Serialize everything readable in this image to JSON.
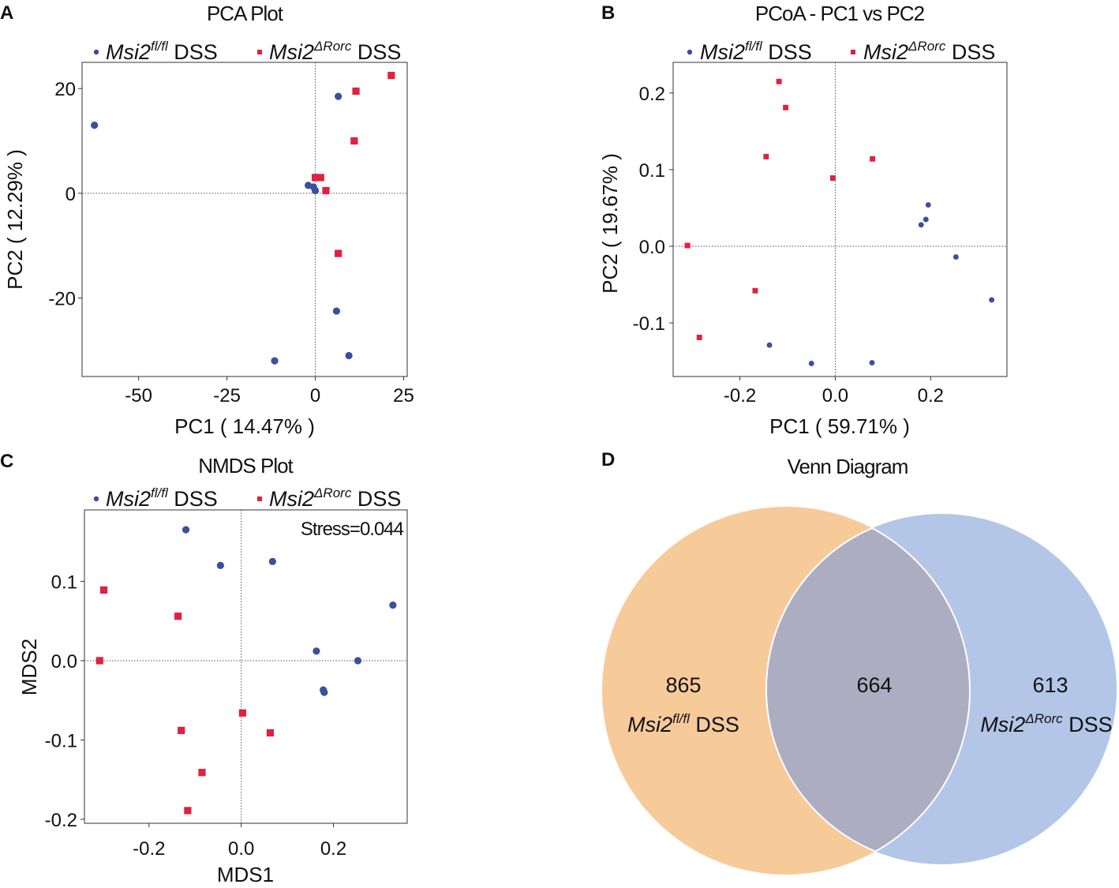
{
  "chart_data": [
    {
      "id": "A",
      "type": "scatter",
      "panel_label": "A",
      "title": "PCA Plot",
      "xlabel": "PC1 ( 14.47% )",
      "ylabel": "PC2 ( 12.29% )",
      "xlim": [
        -66,
        26
      ],
      "ylim": [
        -35,
        25
      ],
      "xticks": [
        -50,
        -25,
        0,
        25
      ],
      "yticks": [
        20,
        0,
        -20
      ],
      "xtick_labels": [
        "-50",
        "-25",
        "0",
        "25"
      ],
      "ytick_labels": [
        "20",
        "0",
        "-20"
      ],
      "ref_lines": {
        "x": 0,
        "y": 0
      },
      "legend_position": "top",
      "series": [
        {
          "name": "Msi2fl/fl DSS",
          "marker": "circle",
          "color": "#3a4fa0",
          "points": [
            [
              -62.5,
              13
            ],
            [
              6.5,
              18.5
            ],
            [
              -2,
              1.5
            ],
            [
              -0.5,
              1.2
            ],
            [
              0,
              0.5
            ],
            [
              6,
              -22.5
            ],
            [
              9.5,
              -31
            ],
            [
              -11.5,
              -32
            ]
          ]
        },
        {
          "name": "Msi2ΔRorc DSS",
          "marker": "square",
          "color": "#e0213f",
          "points": [
            [
              21.5,
              22.5
            ],
            [
              11.5,
              19.5
            ],
            [
              11,
              10
            ],
            [
              0,
              3
            ],
            [
              1.5,
              3
            ],
            [
              3,
              0.5
            ],
            [
              6.5,
              -11.5
            ]
          ]
        }
      ]
    },
    {
      "id": "B",
      "type": "scatter",
      "panel_label": "B",
      "title": "PCoA - PC1 vs PC2",
      "xlabel": "PC1 ( 59.71% )",
      "ylabel": "PC2 ( 19.67% )",
      "xlim": [
        -0.34,
        0.36
      ],
      "ylim": [
        -0.17,
        0.24
      ],
      "xticks": [
        -0.2,
        0.0,
        0.2
      ],
      "yticks": [
        0.2,
        0.1,
        0.0,
        -0.1
      ],
      "xtick_labels": [
        "-0.2",
        "0.0",
        "0.2"
      ],
      "ytick_labels": [
        "0.2",
        "0.1",
        "0.0",
        "-0.1"
      ],
      "ref_lines": {
        "x": 0,
        "y": 0
      },
      "legend_position": "top",
      "series": [
        {
          "name": "Msi2fl/fl DSS",
          "marker": "circle",
          "color": "#3a4fa0",
          "points": [
            [
              0.195,
              0.054
            ],
            [
              0.19,
              0.035
            ],
            [
              0.18,
              0.028
            ],
            [
              0.253,
              -0.014
            ],
            [
              0.328,
              -0.07
            ],
            [
              -0.138,
              -0.129
            ],
            [
              -0.05,
              -0.153
            ],
            [
              0.077,
              -0.152
            ]
          ]
        },
        {
          "name": "Msi2ΔRorc DSS",
          "marker": "square",
          "color": "#e0213f",
          "points": [
            [
              -0.118,
              0.215
            ],
            [
              -0.104,
              0.181
            ],
            [
              -0.145,
              0.117
            ],
            [
              0.078,
              0.114
            ],
            [
              -0.005,
              0.089
            ],
            [
              -0.31,
              0.001
            ],
            [
              -0.168,
              -0.058
            ],
            [
              -0.285,
              -0.119
            ]
          ]
        }
      ]
    },
    {
      "id": "C",
      "type": "scatter",
      "panel_label": "C",
      "title": "NMDS Plot",
      "xlabel": "MDS1",
      "ylabel": "MDS2",
      "annotation": "Stress=0.044",
      "xlim": [
        -0.34,
        0.36
      ],
      "ylim": [
        -0.205,
        0.19
      ],
      "xticks": [
        -0.2,
        0.0,
        0.2
      ],
      "yticks": [
        0.1,
        0.0,
        -0.1,
        -0.2
      ],
      "xtick_labels": [
        "-0.2",
        "0.0",
        "0.2"
      ],
      "ytick_labels": [
        "0.1",
        "0.0",
        "-0.1",
        "-0.2"
      ],
      "ref_lines": {
        "x": 0,
        "y": 0
      },
      "legend_position": "top",
      "series": [
        {
          "name": "Msi2fl/fl DSS",
          "marker": "circle",
          "color": "#3a4fa0",
          "points": [
            [
              -0.12,
              0.165
            ],
            [
              -0.045,
              0.12
            ],
            [
              0.068,
              0.125
            ],
            [
              0.329,
              0.07
            ],
            [
              0.163,
              0.012
            ],
            [
              0.253,
              0.0
            ],
            [
              0.178,
              -0.037
            ],
            [
              0.18,
              -0.04
            ]
          ]
        },
        {
          "name": "Msi2ΔRorc DSS",
          "marker": "square",
          "color": "#e0213f",
          "points": [
            [
              -0.298,
              0.089
            ],
            [
              -0.137,
              0.056
            ],
            [
              -0.307,
              0.0
            ],
            [
              0.003,
              -0.066
            ],
            [
              0.063,
              -0.091
            ],
            [
              -0.13,
              -0.088
            ],
            [
              -0.085,
              -0.141
            ],
            [
              -0.116,
              -0.189
            ]
          ]
        }
      ]
    },
    {
      "id": "D",
      "type": "venn",
      "panel_label": "D",
      "title": "Venn Diagram",
      "sets": [
        {
          "name": "Msi2fl/fl DSS",
          "value": 865,
          "color": "#f7ca9a"
        },
        {
          "name": "Msi2ΔRorc DSS",
          "value": 613,
          "color": "#b3c6e7"
        }
      ],
      "intersection": {
        "value": 664,
        "color": "#adadc2"
      }
    }
  ],
  "legend_labels": {
    "fl": {
      "gene": "Msi2",
      "sup": "fl/fl",
      "suffix": " DSS"
    },
    "rorc": {
      "gene": "Msi2",
      "sup": "ΔRorc",
      "suffix": " DSS"
    }
  }
}
